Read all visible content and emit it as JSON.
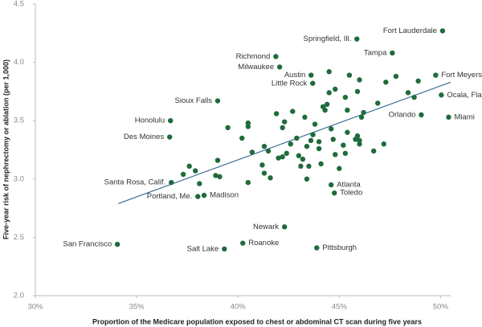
{
  "chart_data": {
    "type": "scatter",
    "xlabel": "Proportion of the Medicare population exposed to chest or abdominal CT scan during five years",
    "ylabel": "Five-year risk of nephrectomy or ablation (per 1,000)",
    "xlim": [
      30,
      50.5
    ],
    "ylim": [
      2.0,
      4.5
    ],
    "xticks": [
      {
        "value": 30,
        "label": "30%"
      },
      {
        "value": 35,
        "label": "35%"
      },
      {
        "value": 40,
        "label": "40%"
      },
      {
        "value": 45,
        "label": "45%"
      },
      {
        "value": 50,
        "label": "50%"
      }
    ],
    "yticks": [
      {
        "value": 2,
        "label": "2.0"
      },
      2.5,
      {
        "value": 3,
        "label": "3.0"
      },
      3.5,
      {
        "value": 4,
        "label": "4.0"
      },
      4.5
    ],
    "color": "#1f6b3b",
    "trend_color": "#3a6e94",
    "labeled_points": {
      "labels": [
        "Fort Lauderdale",
        "Springfield, Ill.",
        "Tampa",
        "Richmond",
        "Milwaukee",
        "Austin",
        "Little Rock",
        "Fort Meyers",
        "Ocala, Fla.",
        "Sioux Falls",
        "Orlando",
        "Miami",
        "Honolulu",
        "Des Moines",
        "Santa Rosa, Calif.",
        "Portland, Me.",
        "Madison",
        "Atlanta",
        "Toledo",
        "Newark",
        "Roanoke",
        "Salt Lake",
        "Pittsburgh",
        "San Francisco"
      ],
      "x": [
        50.1,
        45.87,
        47.62,
        41.87,
        42.06,
        43.61,
        43.69,
        49.76,
        50.04,
        39.0,
        49.05,
        50.4,
        36.67,
        36.63,
        36.71,
        38.02,
        38.33,
        44.6,
        44.76,
        42.3,
        40.24,
        39.33,
        43.89,
        34.05
      ],
      "y": [
        4.27,
        4.2,
        4.08,
        4.05,
        3.96,
        3.89,
        3.82,
        3.89,
        3.72,
        3.67,
        3.55,
        3.53,
        3.5,
        3.36,
        2.97,
        2.85,
        2.86,
        2.95,
        2.88,
        2.59,
        2.45,
        2.4,
        2.41,
        2.44
      ]
    },
    "points": {
      "x": [
        37.3,
        37.6,
        37.9,
        38.1,
        38.9,
        39.1,
        39.0,
        39.5,
        40.2,
        40.5,
        40.5,
        40.7,
        41.2,
        41.3,
        41.5,
        41.3,
        40.5,
        41.6,
        42.0,
        42.2,
        42.4,
        41.9,
        42.2,
        42.3,
        42.6,
        42.7,
        42.9,
        43.1,
        43.2,
        43.0,
        43.4,
        43.5,
        43.3,
        43.4,
        43.6,
        43.7,
        43.8,
        44.0,
        44.0,
        44.1,
        44.2,
        44.3,
        44.4,
        44.5,
        44.5,
        44.6,
        44.7,
        44.8,
        44.8,
        45.0,
        45.2,
        45.3,
        45.4,
        45.4,
        45.3,
        45.5,
        45.8,
        45.9,
        46.0,
        46.1,
        46.2,
        46.0,
        45.9,
        46.0,
        46.7,
        46.9,
        47.2,
        47.3,
        47.8,
        48.4,
        48.7,
        48.9
      ],
      "y": [
        3.04,
        3.11,
        3.07,
        2.96,
        3.03,
        3.02,
        3.16,
        3.44,
        3.35,
        3.45,
        3.48,
        3.23,
        3.12,
        3.28,
        3.24,
        3.05,
        2.97,
        3.01,
        3.18,
        3.19,
        3.22,
        3.56,
        3.44,
        3.49,
        3.3,
        3.58,
        3.35,
        3.11,
        3.17,
        3.2,
        3.0,
        3.11,
        3.53,
        3.28,
        3.33,
        3.38,
        3.47,
        3.32,
        3.26,
        3.13,
        3.62,
        3.59,
        3.64,
        3.74,
        3.92,
        3.43,
        3.34,
        3.21,
        3.77,
        3.09,
        3.29,
        3.22,
        3.4,
        3.59,
        3.7,
        3.89,
        3.34,
        3.37,
        3.33,
        3.53,
        3.57,
        3.3,
        3.75,
        3.85,
        3.24,
        3.65,
        3.3,
        3.83,
        3.88,
        3.74,
        3.7,
        3.84
      ]
    },
    "trendline": {
      "x": [
        34.1,
        50.5
      ],
      "y": [
        2.79,
        3.83
      ]
    }
  }
}
